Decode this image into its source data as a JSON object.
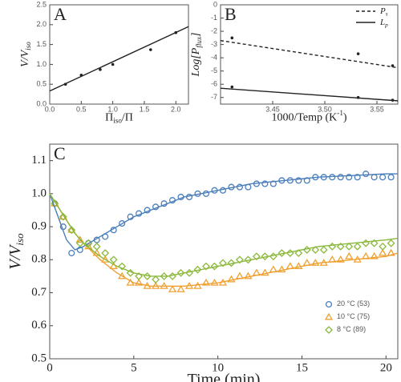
{
  "chart_data": [
    {
      "type": "scatter",
      "panel": "A",
      "xlabel": [
        "Π",
        "iso",
        "/Π"
      ],
      "ylabel": [
        "V/V",
        "iso"
      ],
      "xlim": [
        0,
        2.2
      ],
      "ylim": [
        0,
        2.5
      ],
      "xticks": [
        {
          "value": 0,
          "label": "0.0"
        },
        {
          "value": 0.5,
          "label": "0.5"
        },
        {
          "value": 1,
          "label": "1.0"
        },
        {
          "value": 1.5,
          "label": "1.5"
        },
        {
          "value": 2,
          "label": "2.0"
        }
      ],
      "yticks": [
        {
          "value": 0,
          "label": "0.0"
        },
        0.5,
        {
          "value": 1,
          "label": "1.0"
        },
        1.5,
        {
          "value": 2,
          "label": "2.0"
        },
        2.5
      ],
      "series": [
        {
          "marker": "dot",
          "color": "#222222",
          "x": [
            0.25,
            0.5,
            0.8,
            1.0,
            1.6,
            2.0
          ],
          "values": [
            0.5,
            0.73,
            0.87,
            1.0,
            1.37,
            1.8
          ]
        },
        {
          "style": "solid",
          "color": "#222222",
          "x": [
            0,
            2.2
          ],
          "values": [
            0.33,
            1.95
          ]
        }
      ]
    },
    {
      "type": "scatter",
      "panel": "B",
      "xlabel": [
        "1000/Temp (K",
        "-1",
        ")"
      ],
      "xlabel_script": "sup",
      "ylabel": [
        "Log[P",
        "flux",
        "]"
      ],
      "xlim": [
        3.4,
        3.57
      ],
      "ylim": [
        -7.5,
        0
      ],
      "xticks": [
        3.45,
        {
          "value": 3.5,
          "label": "3.50"
        },
        3.55
      ],
      "yticks": [
        0,
        -1,
        -2,
        -3,
        -4,
        -5,
        -6,
        -7
      ],
      "legend": "upper right",
      "series": [
        {
          "marker": "dot",
          "color": "#222222",
          "x": [
            3.411,
            3.532,
            3.565
          ],
          "values": [
            -2.5,
            -3.7,
            -4.6
          ]
        },
        {
          "name": [
            "P",
            "s"
          ],
          "style": "dashed",
          "color": "#222222",
          "x": [
            3.4,
            3.57
          ],
          "values": [
            -2.7,
            -4.75
          ]
        },
        {
          "marker": "dot",
          "color": "#222222",
          "x": [
            3.411,
            3.532,
            3.565
          ],
          "values": [
            -6.2,
            -7.0,
            -7.2
          ]
        },
        {
          "name": [
            "L",
            "p"
          ],
          "style": "solid",
          "color": "#222222",
          "x": [
            3.4,
            3.57
          ],
          "values": [
            -6.3,
            -7.25
          ]
        }
      ]
    },
    {
      "type": "scatter",
      "panel": "C",
      "xlabel": [
        "Time (min)"
      ],
      "ylabel": [
        "V/V",
        "iso"
      ],
      "xlim": [
        0,
        20.7
      ],
      "ylim": [
        0.5,
        1.15
      ],
      "xticks": [
        0,
        5,
        10,
        15,
        20
      ],
      "yticks": [
        0.5,
        0.6,
        0.7,
        0.8,
        0.9,
        {
          "value": 1,
          "label": "1.0"
        },
        1.1
      ],
      "legend": "lower right",
      "x": [
        0.3,
        0.8,
        1.3,
        1.8,
        2.3,
        2.8,
        3.3,
        3.8,
        4.3,
        4.8,
        5.3,
        5.8,
        6.3,
        6.8,
        7.3,
        7.8,
        8.3,
        8.8,
        9.3,
        9.8,
        10.3,
        10.8,
        11.3,
        11.8,
        12.3,
        12.8,
        13.3,
        13.8,
        14.3,
        14.8,
        15.3,
        15.8,
        16.3,
        16.8,
        17.3,
        17.8,
        18.3,
        18.8,
        19.3,
        19.8,
        20.3
      ],
      "series": [
        {
          "name": [
            "20 °C (53)"
          ],
          "marker": "circle",
          "color": "#4a7ebb",
          "values": [
            0.97,
            0.9,
            0.82,
            0.83,
            0.85,
            0.86,
            0.87,
            0.89,
            0.91,
            0.93,
            0.94,
            0.95,
            0.96,
            0.97,
            0.98,
            0.99,
            0.99,
            1.0,
            1.0,
            1.01,
            1.01,
            1.02,
            1.02,
            1.02,
            1.03,
            1.03,
            1.03,
            1.04,
            1.04,
            1.04,
            1.04,
            1.05,
            1.05,
            1.05,
            1.05,
            1.05,
            1.05,
            1.06,
            1.05,
            1.05,
            1.05
          ]
        },
        {
          "name": [
            "10 °C (75)"
          ],
          "marker": "triangle",
          "color": "#f0a030",
          "values": [
            0.97,
            0.93,
            0.89,
            0.86,
            0.84,
            0.82,
            0.8,
            0.78,
            0.75,
            0.73,
            0.73,
            0.72,
            0.72,
            0.72,
            0.71,
            0.71,
            0.72,
            0.72,
            0.73,
            0.73,
            0.73,
            0.74,
            0.75,
            0.75,
            0.76,
            0.76,
            0.77,
            0.77,
            0.78,
            0.78,
            0.79,
            0.79,
            0.79,
            0.8,
            0.8,
            0.81,
            0.8,
            0.81,
            0.81,
            0.82,
            0.82
          ]
        },
        {
          "name": [
            "8 °C (89)"
          ],
          "marker": "diamond",
          "color": "#8ab83a",
          "values": [
            0.97,
            0.93,
            0.89,
            0.85,
            0.85,
            0.84,
            0.82,
            0.8,
            0.78,
            0.76,
            0.75,
            0.75,
            0.74,
            0.75,
            0.75,
            0.76,
            0.76,
            0.77,
            0.78,
            0.78,
            0.79,
            0.79,
            0.8,
            0.8,
            0.81,
            0.81,
            0.81,
            0.82,
            0.82,
            0.82,
            0.83,
            0.83,
            0.83,
            0.84,
            0.84,
            0.84,
            0.84,
            0.85,
            0.85,
            0.84,
            0.85
          ]
        },
        {
          "style": "solid",
          "color": "#4a7ebb",
          "x": [
            0,
            0.5,
            1,
            1.5,
            2,
            3,
            4,
            5,
            6,
            7,
            8,
            10,
            12,
            14,
            16,
            18,
            20,
            20.7
          ],
          "values": [
            1.0,
            0.93,
            0.86,
            0.83,
            0.84,
            0.87,
            0.9,
            0.93,
            0.95,
            0.97,
            0.99,
            1.01,
            1.03,
            1.04,
            1.05,
            1.055,
            1.06,
            1.06
          ]
        },
        {
          "style": "solid",
          "color": "#f0a030",
          "x": [
            0,
            0.5,
            1,
            1.5,
            2,
            3,
            4,
            5,
            6,
            7,
            8,
            10,
            12,
            14,
            16,
            18,
            20,
            20.7
          ],
          "values": [
            1.0,
            0.96,
            0.92,
            0.88,
            0.85,
            0.8,
            0.76,
            0.73,
            0.72,
            0.72,
            0.72,
            0.73,
            0.75,
            0.77,
            0.79,
            0.8,
            0.81,
            0.82
          ]
        },
        {
          "style": "solid",
          "color": "#8ab83a",
          "x": [
            0,
            0.5,
            1,
            1.5,
            2,
            3,
            4,
            5,
            6,
            7,
            8,
            10,
            12,
            14,
            16,
            18,
            20,
            20.7
          ],
          "values": [
            1.0,
            0.96,
            0.92,
            0.88,
            0.85,
            0.81,
            0.78,
            0.76,
            0.75,
            0.75,
            0.76,
            0.78,
            0.8,
            0.82,
            0.84,
            0.85,
            0.86,
            0.865
          ]
        }
      ]
    }
  ]
}
